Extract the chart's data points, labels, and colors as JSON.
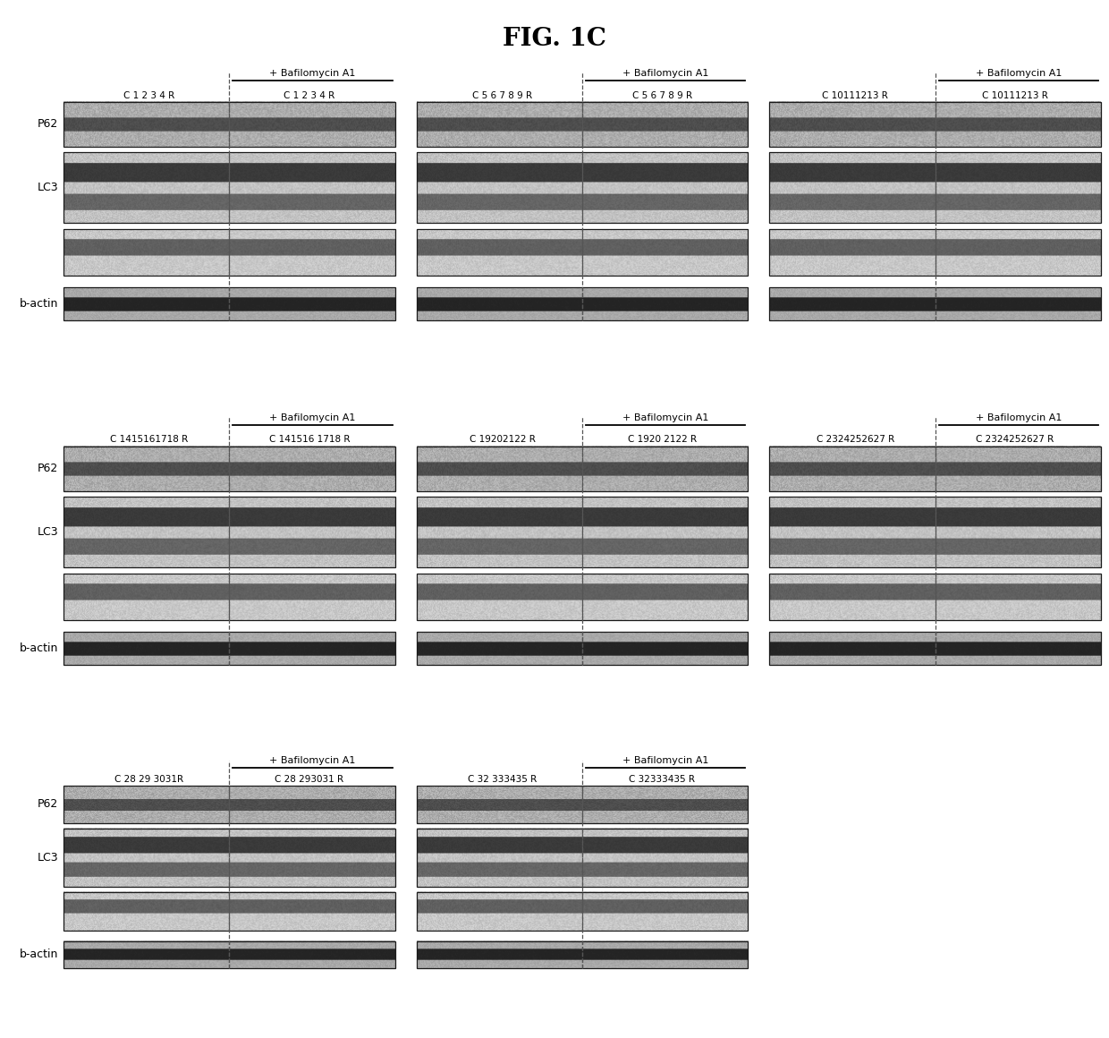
{
  "title": "FIG. 1C",
  "title_fontsize": 20,
  "title_fontweight": "bold",
  "bg_color": "#ffffff",
  "row1_groups": [
    {
      "left_lbl": "C 1 2 3 4 R",
      "right_lbl": "C 1 2 3 4 R"
    },
    {
      "left_lbl": "C 5 6 7 8 9 R",
      "right_lbl": "C 5 6 7 8 9 R"
    },
    {
      "left_lbl": "C 10111213 R",
      "right_lbl": "C 10111213 R"
    }
  ],
  "row2_groups": [
    {
      "left_lbl": "C 1415161718 R",
      "right_lbl": "C 141516 1718 R"
    },
    {
      "left_lbl": "C 19202122 R",
      "right_lbl": "C 1920 2122 R"
    },
    {
      "left_lbl": "C 2324252627 R",
      "right_lbl": "C 2324252627 R"
    }
  ],
  "row3_groups": [
    {
      "left_lbl": "C 28 29 3031R",
      "right_lbl": "C 28 293031 R"
    },
    {
      "left_lbl": "C 32 333435 R",
      "right_lbl": "C 32333435 R"
    }
  ],
  "baf_label": "+ Bafilomycin A1",
  "protein_labels": [
    "P62",
    "LC3",
    "b-actin"
  ],
  "label_fontsize": 9,
  "col_label_fontsize": 7.5,
  "baf_fontsize": 8
}
